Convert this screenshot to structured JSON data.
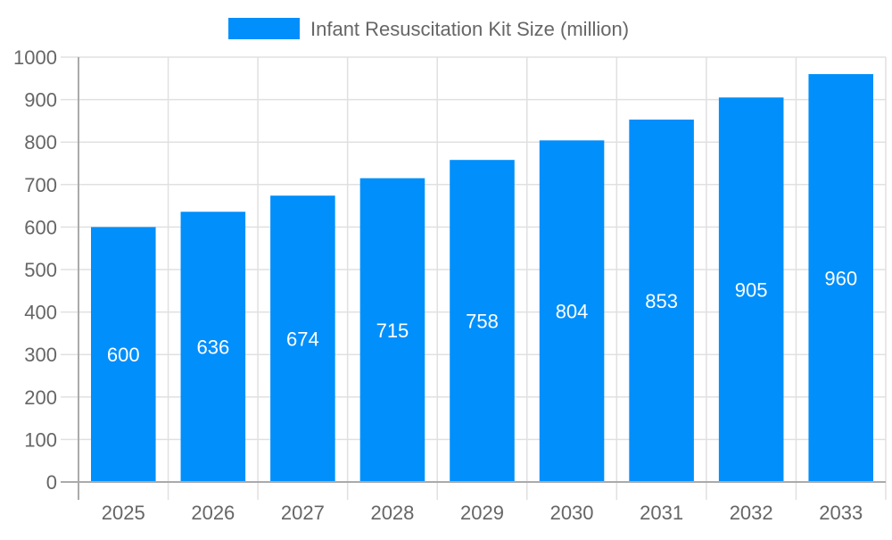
{
  "chart_data": {
    "type": "bar",
    "categories": [
      "2025",
      "2026",
      "2027",
      "2028",
      "2029",
      "2030",
      "2031",
      "2032",
      "2033"
    ],
    "series": [
      {
        "name": "Infant Resuscitation Kit Size (million)",
        "values": [
          600,
          636,
          674,
          715,
          758,
          804,
          853,
          905,
          960
        ],
        "color": "#008ffb"
      }
    ],
    "ylim": [
      0,
      1000
    ],
    "yticks": [
      0,
      100,
      200,
      300,
      400,
      500,
      600,
      700,
      800,
      900,
      1000
    ],
    "grid": true,
    "legend": "top-center",
    "data_labels": true,
    "title": "",
    "xlabel": "",
    "ylabel": ""
  }
}
